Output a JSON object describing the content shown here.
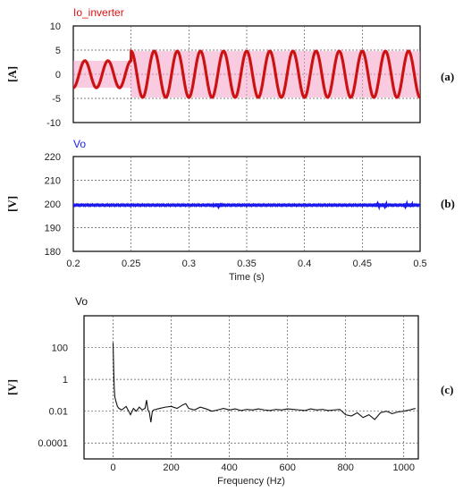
{
  "chart_data": [
    {
      "type": "line",
      "panel_tag": "(a)",
      "title": "Io_inverter",
      "ylabel": "[A]",
      "xlim": [
        0.2,
        0.5
      ],
      "ylim": [
        -10,
        10
      ],
      "yticks": [
        10,
        5,
        0,
        -5,
        -10
      ],
      "xticks": [
        0.25,
        0.3,
        0.35,
        0.4,
        0.45
      ],
      "grid": true,
      "series": [
        {
          "color": "#dd1111",
          "signal": "sinusoid",
          "frequency_hz": 50,
          "segments": [
            {
              "x_start": 0.2,
              "x_end": 0.25,
              "amplitude": 2.8
            },
            {
              "x_start": 0.25,
              "x_end": 0.5,
              "amplitude": 4.8
            }
          ]
        }
      ],
      "band_color": "#f4a0c8"
    },
    {
      "type": "line",
      "panel_tag": "(b)",
      "title": "Vo",
      "ylabel": "[V]",
      "xlabel": "Time (s)",
      "xlim": [
        0.2,
        0.5
      ],
      "ylim": [
        180,
        220
      ],
      "yticks": [
        220,
        210,
        200,
        190,
        180
      ],
      "xticks": [
        0.2,
        0.25,
        0.3,
        0.35,
        0.4,
        0.45,
        0.5
      ],
      "grid": true,
      "series": [
        {
          "color": "#1a1aee",
          "value": 199.5,
          "ripple": 0.4
        }
      ]
    },
    {
      "type": "line",
      "panel_tag": "(c)",
      "title": "Vo",
      "ylabel": "[V]",
      "xlabel": "Frequency (Hz)",
      "xlim": [
        -100,
        1050
      ],
      "yscale": "log",
      "ylim": [
        1e-05,
        10000
      ],
      "ytick_labels": [
        "100",
        "1",
        "0.01",
        "0.0001"
      ],
      "ytick_values": [
        100,
        1,
        0.01,
        0.0001
      ],
      "xticks": [
        0,
        200,
        400,
        600,
        800,
        1000
      ],
      "grid": true,
      "series": [
        {
          "color": "#111111",
          "x": [
            0,
            2,
            4,
            6,
            10,
            15,
            20,
            30,
            45,
            60,
            70,
            80,
            90,
            100,
            110,
            115,
            120,
            125,
            130,
            135,
            140,
            160,
            180,
            200,
            220,
            240,
            250,
            260,
            280,
            300,
            320,
            340,
            360,
            380,
            400,
            420,
            440,
            460,
            480,
            500,
            520,
            540,
            560,
            580,
            600,
            620,
            640,
            660,
            680,
            700,
            720,
            740,
            760,
            780,
            800,
            820,
            840,
            860,
            880,
            900,
            920,
            940,
            960,
            980,
            1000,
            1020,
            1040
          ],
          "y": [
            200,
            5,
            0.3,
            0.08,
            0.04,
            0.02,
            0.015,
            0.012,
            0.02,
            0.006,
            0.015,
            0.01,
            0.018,
            0.012,
            0.015,
            0.05,
            0.012,
            0.008,
            0.002,
            0.01,
            0.012,
            0.015,
            0.018,
            0.02,
            0.015,
            0.025,
            0.03,
            0.015,
            0.012,
            0.018,
            0.014,
            0.01,
            0.012,
            0.015,
            0.012,
            0.014,
            0.011,
            0.013,
            0.012,
            0.014,
            0.012,
            0.011,
            0.013,
            0.012,
            0.014,
            0.013,
            0.012,
            0.011,
            0.014,
            0.012,
            0.013,
            0.011,
            0.012,
            0.013,
            0.006,
            0.005,
            0.008,
            0.004,
            0.006,
            0.003,
            0.008,
            0.01,
            0.007,
            0.009,
            0.01,
            0.012,
            0.015
          ]
        }
      ]
    }
  ]
}
